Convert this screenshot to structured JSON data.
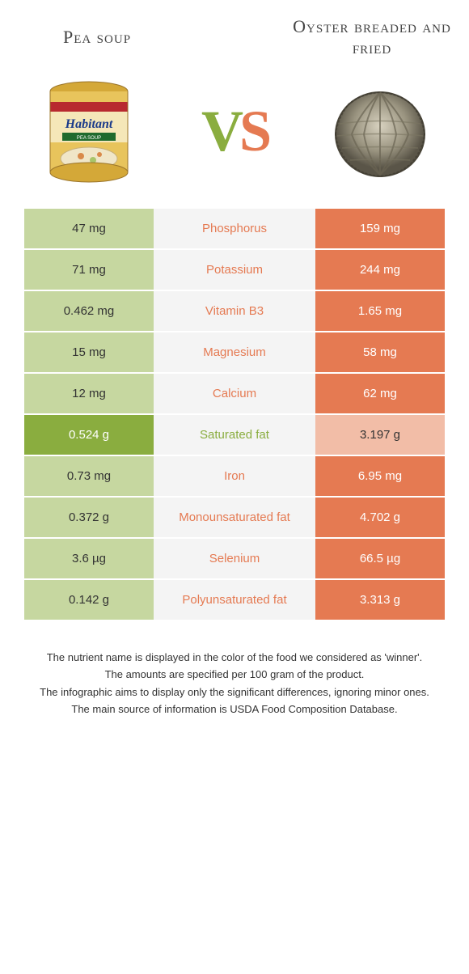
{
  "titles": {
    "left": "Pea soup",
    "right": "Oyster breaded and fried"
  },
  "vs": {
    "v": "V",
    "s": "S"
  },
  "colors": {
    "green": "#8aad3f",
    "green_light": "#c6d7a0",
    "orange": "#e57a52",
    "orange_light": "#f2bda7",
    "mid_bg": "#f4f4f4"
  },
  "rows": [
    {
      "left": "47 mg",
      "left_light": true,
      "nutrient": "Phosphorus",
      "winner": "orange",
      "right": "159 mg",
      "right_light": false
    },
    {
      "left": "71 mg",
      "left_light": true,
      "nutrient": "Potassium",
      "winner": "orange",
      "right": "244 mg",
      "right_light": false
    },
    {
      "left": "0.462 mg",
      "left_light": true,
      "nutrient": "Vitamin B3",
      "winner": "orange",
      "right": "1.65 mg",
      "right_light": false
    },
    {
      "left": "15 mg",
      "left_light": true,
      "nutrient": "Magnesium",
      "winner": "orange",
      "right": "58 mg",
      "right_light": false
    },
    {
      "left": "12 mg",
      "left_light": true,
      "nutrient": "Calcium",
      "winner": "orange",
      "right": "62 mg",
      "right_light": false
    },
    {
      "left": "0.524 g",
      "left_light": false,
      "nutrient": "Saturated fat",
      "winner": "green",
      "right": "3.197 g",
      "right_light": true
    },
    {
      "left": "0.73 mg",
      "left_light": true,
      "nutrient": "Iron",
      "winner": "orange",
      "right": "6.95 mg",
      "right_light": false
    },
    {
      "left": "0.372 g",
      "left_light": true,
      "nutrient": "Monounsaturated fat",
      "winner": "orange",
      "right": "4.702 g",
      "right_light": false
    },
    {
      "left": "3.6 µg",
      "left_light": true,
      "nutrient": "Selenium",
      "winner": "orange",
      "right": "66.5 µg",
      "right_light": false
    },
    {
      "left": "0.142 g",
      "left_light": true,
      "nutrient": "Polyunsaturated fat",
      "winner": "orange",
      "right": "3.313 g",
      "right_light": false
    }
  ],
  "footer": {
    "line1": "The nutrient name is displayed in the color of the food we considered as 'winner'.",
    "line2": "The amounts are specified per 100 gram of the product.",
    "line3": "The infographic aims to display only the significant differences, ignoring minor ones.",
    "line4": "The main source of information is USDA Food Composition Database."
  }
}
